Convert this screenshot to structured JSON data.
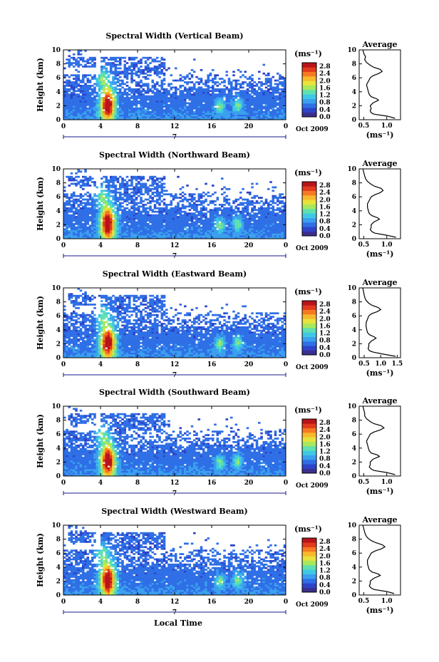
{
  "figure": {
    "xlabel": "Local Time"
  },
  "colors": {
    "colormap": [
      "#3a2f8f",
      "#2d43c8",
      "#2f6fe6",
      "#3aa0ee",
      "#3fc8e4",
      "#5fe0b0",
      "#a8e85c",
      "#e8e23c",
      "#f8b82c",
      "#f57a22",
      "#e23a1c",
      "#b8141a"
    ],
    "axis": "#000000",
    "timeline": "#1a1a8c",
    "profile": "#000000"
  },
  "chart_data": [
    {
      "type": "heatmap",
      "title": "Spectral Width (Vertical Beam)",
      "ylabel": "Height (km)",
      "xlim": [
        0,
        24
      ],
      "ylim": [
        0,
        10
      ],
      "x_ticks": [
        "0",
        "4",
        "8",
        "12",
        "16",
        "20",
        "0"
      ],
      "y_ticks": [
        "0",
        "2",
        "4",
        "6",
        "8",
        "10"
      ],
      "date_marker": "7",
      "date_label": "Oct 2009",
      "colorbar": {
        "unit": "(ms⁻¹)",
        "ticks": [
          "0.0",
          "0.4",
          "0.8",
          "1.2",
          "1.6",
          "2.0",
          "2.4",
          "2.8"
        ],
        "range": [
          0,
          3.0
        ]
      },
      "profile": {
        "title": "Average",
        "xlabel": "(ms⁻¹)",
        "x_ticks": [
          "0.5",
          "1.0"
        ],
        "xlim": [
          0.4,
          1.3
        ],
        "ylim": [
          0,
          10
        ],
        "height_km": [
          0.2,
          0.5,
          0.8,
          1.0,
          1.3,
          1.6,
          2.0,
          2.4,
          2.8,
          3.0,
          3.3,
          3.6,
          4.0,
          4.5,
          5.0,
          5.5,
          6.0,
          6.3,
          6.6,
          6.9,
          7.2,
          7.5,
          7.8,
          8.2,
          8.6,
          9.0,
          9.5,
          10.0
        ],
        "width_ms": [
          1.18,
          1.02,
          0.72,
          0.66,
          0.64,
          0.66,
          0.64,
          0.7,
          0.82,
          0.78,
          0.66,
          0.62,
          0.6,
          0.58,
          0.56,
          0.6,
          0.64,
          0.7,
          0.82,
          0.9,
          0.86,
          0.72,
          0.64,
          0.56,
          0.52,
          0.54,
          0.5,
          0.48
        ]
      }
    },
    {
      "type": "heatmap",
      "title": "Spectral Width (Northward Beam)",
      "ylabel": "Height (km)",
      "xlim": [
        0,
        24
      ],
      "ylim": [
        0,
        10
      ],
      "x_ticks": [
        "0",
        "4",
        "8",
        "12",
        "16",
        "20",
        "0"
      ],
      "y_ticks": [
        "0",
        "2",
        "4",
        "6",
        "8",
        "10"
      ],
      "date_marker": "7",
      "date_label": "Oct 2009",
      "colorbar": {
        "unit": "(ms⁻¹)",
        "ticks": [
          "0.0",
          "0.4",
          "0.8",
          "1.2",
          "1.6",
          "2.0",
          "2.4",
          "2.8"
        ],
        "range": [
          0,
          3.0
        ]
      },
      "profile": {
        "title": "Average",
        "xlabel": "(ms⁻¹)",
        "x_ticks": [
          "0.5",
          "1.0"
        ],
        "xlim": [
          0.4,
          1.3
        ],
        "ylim": [
          0,
          10
        ],
        "height_km": [
          0.2,
          0.5,
          0.8,
          1.0,
          1.3,
          1.6,
          2.0,
          2.4,
          2.8,
          3.0,
          3.3,
          3.6,
          4.0,
          4.5,
          5.0,
          5.5,
          6.0,
          6.3,
          6.6,
          6.9,
          7.2,
          7.5,
          7.8,
          8.2,
          8.6,
          9.0,
          9.5,
          10.0
        ],
        "width_ms": [
          1.2,
          1.0,
          0.74,
          0.68,
          0.64,
          0.66,
          0.66,
          0.72,
          0.84,
          0.8,
          0.68,
          0.62,
          0.6,
          0.58,
          0.58,
          0.62,
          0.66,
          0.74,
          0.86,
          0.92,
          0.88,
          0.74,
          0.66,
          0.58,
          0.54,
          0.52,
          0.5,
          0.48
        ]
      }
    },
    {
      "type": "heatmap",
      "title": "Spectral Width (Eastward Beam)",
      "ylabel": "Height (km)",
      "xlim": [
        0,
        24
      ],
      "ylim": [
        0,
        10
      ],
      "x_ticks": [
        "0",
        "4",
        "8",
        "12",
        "16",
        "20",
        "0"
      ],
      "y_ticks": [
        "0",
        "2",
        "4",
        "6",
        "8",
        "10"
      ],
      "date_marker": "7",
      "date_label": "Oct 2009",
      "colorbar": {
        "unit": "(ms⁻¹)",
        "ticks": [
          "0.0",
          "0.4",
          "0.8",
          "1.2",
          "1.6",
          "2.0",
          "2.4",
          "2.8"
        ],
        "range": [
          0,
          3.0
        ]
      },
      "profile": {
        "title": "Average",
        "xlabel": "(ms⁻¹)",
        "x_ticks": [
          "0.5",
          "1.0",
          "1.5"
        ],
        "xlim": [
          0.35,
          1.6
        ],
        "ylim": [
          0,
          10
        ],
        "height_km": [
          0.2,
          0.5,
          0.8,
          1.0,
          1.3,
          1.6,
          2.0,
          2.4,
          2.8,
          3.0,
          3.3,
          3.6,
          4.0,
          4.5,
          5.0,
          5.5,
          6.0,
          6.3,
          6.6,
          6.9,
          7.2,
          7.5,
          7.8,
          8.2,
          8.6,
          9.0,
          9.5,
          10.0
        ],
        "width_ms": [
          1.45,
          1.1,
          0.78,
          0.66,
          0.62,
          0.64,
          0.64,
          0.72,
          0.86,
          0.8,
          0.66,
          0.6,
          0.58,
          0.56,
          0.56,
          0.6,
          0.64,
          0.72,
          0.9,
          1.0,
          0.92,
          0.74,
          0.64,
          0.56,
          0.52,
          0.5,
          0.48,
          0.46
        ]
      }
    },
    {
      "type": "heatmap",
      "title": "Spectral Width (Southward Beam)",
      "ylabel": "Height (km)",
      "xlim": [
        0,
        24
      ],
      "ylim": [
        0,
        10
      ],
      "x_ticks": [
        "0",
        "4",
        "8",
        "12",
        "16",
        "20",
        "0"
      ],
      "y_ticks": [
        "0",
        "2",
        "4",
        "6",
        "8",
        "10"
      ],
      "date_marker": "7",
      "date_label": "Oct 2009",
      "colorbar": {
        "unit": "(ms⁻¹)",
        "ticks": [
          "0.0",
          "0.4",
          "0.8",
          "1.2",
          "1.6",
          "2.0",
          "2.4",
          "2.8"
        ],
        "range": [
          0,
          3.0
        ]
      },
      "profile": {
        "title": "Average",
        "xlabel": "(ms⁻¹)",
        "x_ticks": [
          "0.5",
          "1.0"
        ],
        "xlim": [
          0.4,
          1.3
        ],
        "ylim": [
          0,
          10
        ],
        "height_km": [
          0.2,
          0.5,
          0.8,
          1.0,
          1.3,
          1.6,
          2.0,
          2.4,
          2.8,
          3.0,
          3.3,
          3.6,
          4.0,
          4.5,
          5.0,
          5.5,
          6.0,
          6.3,
          6.6,
          6.9,
          7.2,
          7.5,
          7.8,
          8.2,
          8.6,
          9.0,
          9.5,
          10.0
        ],
        "width_ms": [
          1.18,
          1.0,
          0.72,
          0.66,
          0.62,
          0.64,
          0.64,
          0.7,
          0.84,
          0.8,
          0.66,
          0.62,
          0.6,
          0.58,
          0.56,
          0.6,
          0.64,
          0.72,
          0.86,
          0.94,
          0.88,
          0.72,
          0.64,
          0.56,
          0.52,
          0.52,
          0.5,
          0.48
        ]
      }
    },
    {
      "type": "heatmap",
      "title": "Spectral Width (Westward Beam)",
      "ylabel": "Height (km)",
      "xlim": [
        0,
        24
      ],
      "ylim": [
        0,
        10
      ],
      "x_ticks": [
        "0",
        "4",
        "8",
        "12",
        "16",
        "20",
        "0"
      ],
      "y_ticks": [
        "0",
        "2",
        "4",
        "6",
        "8",
        "10"
      ],
      "date_marker": "7",
      "date_label": "Oct 2009",
      "colorbar": {
        "unit": "(ms⁻¹)",
        "ticks": [
          "0.0",
          "0.4",
          "0.8",
          "1.2",
          "1.6",
          "2.0",
          "2.4",
          "2.8"
        ],
        "range": [
          0,
          3.0
        ]
      },
      "profile": {
        "title": "Average",
        "xlabel": "(ms⁻¹)",
        "x_ticks": [
          "0.5",
          "1.0"
        ],
        "xlim": [
          0.4,
          1.3
        ],
        "ylim": [
          0,
          10
        ],
        "height_km": [
          0.2,
          0.5,
          0.8,
          1.0,
          1.3,
          1.6,
          2.0,
          2.4,
          2.8,
          3.0,
          3.3,
          3.6,
          4.0,
          4.5,
          5.0,
          5.5,
          6.0,
          6.3,
          6.6,
          6.9,
          7.2,
          7.5,
          7.8,
          8.2,
          8.6,
          9.0,
          9.5,
          10.0
        ],
        "width_ms": [
          1.16,
          1.0,
          0.72,
          0.66,
          0.62,
          0.64,
          0.64,
          0.72,
          0.86,
          0.82,
          0.68,
          0.62,
          0.6,
          0.58,
          0.58,
          0.62,
          0.66,
          0.74,
          0.88,
          0.96,
          0.9,
          0.76,
          0.66,
          0.58,
          0.54,
          0.52,
          0.5,
          0.48
        ]
      }
    }
  ]
}
